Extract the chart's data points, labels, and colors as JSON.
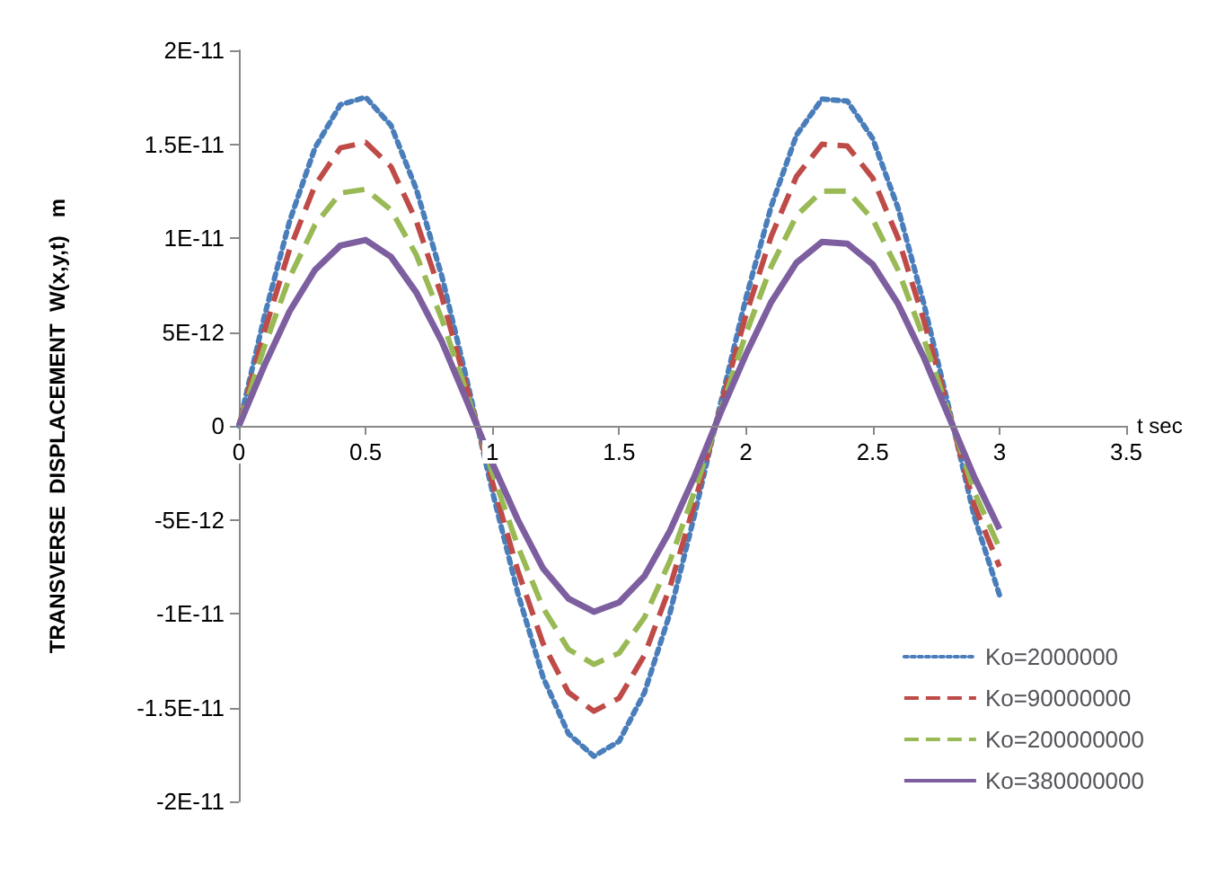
{
  "chart_data": {
    "type": "line",
    "xlabel": "t sec",
    "ylabel": "TRANSVERSE  DISPLACEMENT  W(x,y,t)   m",
    "x": [
      0,
      0.1,
      0.2,
      0.3,
      0.4,
      0.5,
      0.6,
      0.7,
      0.8,
      0.9,
      1.0,
      1.1,
      1.2,
      1.3,
      1.4,
      1.5,
      1.6,
      1.7,
      1.8,
      1.9,
      2.0,
      2.1,
      2.2,
      2.3,
      2.4,
      2.5,
      2.6,
      2.7,
      2.8,
      2.9,
      3.0
    ],
    "series": [
      {
        "name": "Ko=2000000",
        "color": "#4a7ebb",
        "line_style": "dotted",
        "values": [
          0,
          5.8e-12,
          1.09e-11,
          1.48e-11,
          1.71e-11,
          1.75e-11,
          1.6e-11,
          1.26e-11,
          8e-12,
          2.4e-12,
          -3.5e-12,
          -8.9e-12,
          -1.34e-11,
          -1.64e-11,
          -1.76e-11,
          -1.68e-11,
          -1.42e-11,
          -1e-11,
          -4.6e-12,
          1.2e-12,
          6.8e-12,
          1.17e-11,
          1.55e-11,
          1.74e-11,
          1.73e-11,
          1.53e-11,
          1.16e-11,
          6.6e-12,
          1e-12,
          -4.8e-12,
          -9e-12
        ]
      },
      {
        "name": "Ko=90000000",
        "color": "#be4b48",
        "line_style": "dashed",
        "values": [
          0,
          5e-12,
          9.4e-12,
          1.28e-11,
          1.48e-11,
          1.51e-11,
          1.38e-11,
          1.09e-11,
          6.9e-12,
          2e-12,
          -3e-12,
          -7.7e-12,
          -1.16e-11,
          -1.42e-11,
          -1.52e-11,
          -1.45e-11,
          -1.22e-11,
          -8.6e-12,
          -4e-12,
          1e-12,
          5.9e-12,
          1.01e-11,
          1.33e-11,
          1.5e-11,
          1.49e-11,
          1.32e-11,
          1e-11,
          5.7e-12,
          8e-13,
          -4.2e-12,
          -7.5e-12
        ]
      },
      {
        "name": "Ko=200000000",
        "color": "#98b954",
        "line_style": "dashed",
        "values": [
          0,
          4.2e-12,
          7.9e-12,
          1.07e-11,
          1.24e-11,
          1.26e-11,
          1.15e-11,
          9.1e-12,
          5.7e-12,
          1.7e-12,
          -2.5e-12,
          -6.4e-12,
          -9.7e-12,
          -1.19e-11,
          -1.27e-11,
          -1.21e-11,
          -1.02e-11,
          -7.2e-12,
          -3.4e-12,
          8e-13,
          4.9e-12,
          8.5e-12,
          1.12e-11,
          1.25e-11,
          1.25e-11,
          1.1e-11,
          8.3e-12,
          4.7e-12,
          7e-13,
          -3.5e-12,
          -6.5e-12
        ]
      },
      {
        "name": "Ko=380000000",
        "color": "#7d5fa0",
        "line_style": "solid",
        "values": [
          0,
          3.2e-12,
          6.1e-12,
          8.3e-12,
          9.6e-12,
          9.9e-12,
          9e-12,
          7.1e-12,
          4.5e-12,
          1.3e-12,
          -2e-12,
          -5e-12,
          -7.6e-12,
          -9.2e-12,
          -9.9e-12,
          -9.4e-12,
          -8e-12,
          -5.6e-12,
          -2.6e-12,
          7e-13,
          3.8e-12,
          6.6e-12,
          8.7e-12,
          9.8e-12,
          9.7e-12,
          8.6e-12,
          6.5e-12,
          3.7e-12,
          5e-13,
          -2.7e-12,
          -5.5e-12
        ]
      }
    ],
    "xlim": [
      0,
      3.5
    ],
    "xticks": [
      0,
      0.5,
      1,
      1.5,
      2,
      2.5,
      3,
      3.5
    ],
    "ylim": [
      -2e-11,
      2e-11
    ],
    "yticks": [
      {
        "value": -2e-11,
        "label": "-2E-11"
      },
      {
        "value": -1.5e-11,
        "label": "-1.5E-11"
      },
      {
        "value": -1e-11,
        "label": "-1E-11"
      },
      {
        "value": -5e-12,
        "label": "-5E-12"
      },
      0,
      {
        "value": 5e-12,
        "label": "5E-12"
      },
      {
        "value": 1e-11,
        "label": "1E-11"
      },
      {
        "value": 1.5e-11,
        "label": "1.5E-11"
      },
      {
        "value": 2e-11,
        "label": "2E-11"
      }
    ],
    "grid": false,
    "legend": "bottom right",
    "marker": "none"
  }
}
